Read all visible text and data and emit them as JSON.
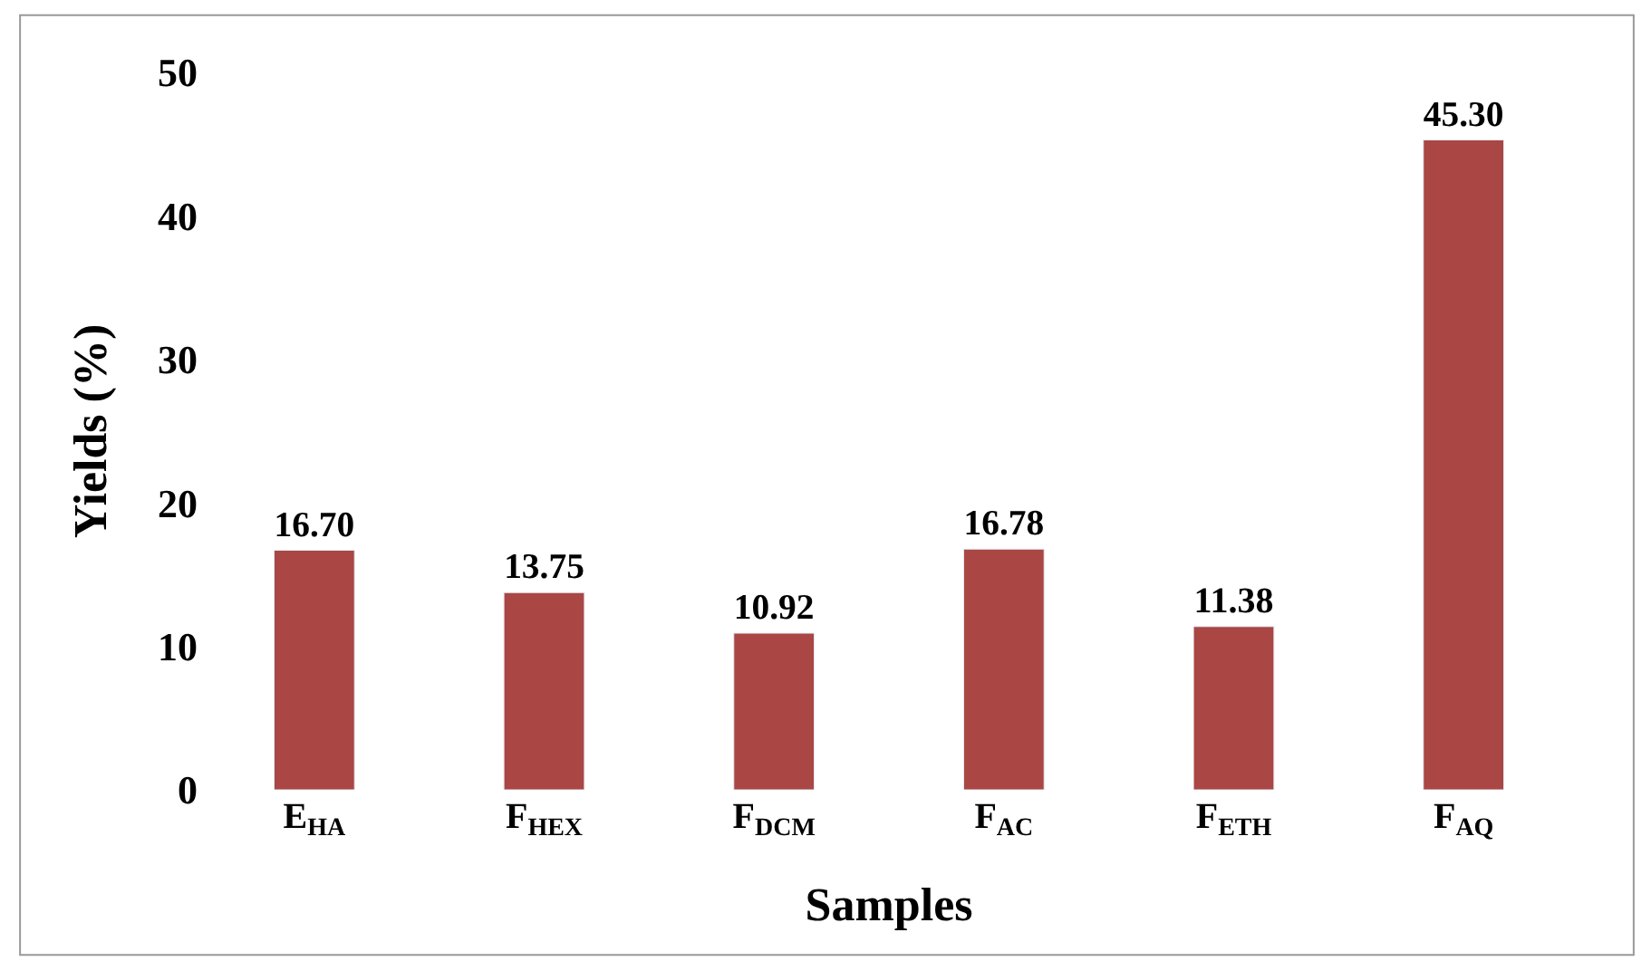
{
  "chart_data": {
    "type": "bar",
    "categories": [
      "E$_{HA}$",
      "F$_{HEX}$",
      "F$_{DCM}$",
      "F$_{AC}$",
      "F$_{ETH}$",
      "F$_{AQ}$"
    ],
    "values": [
      16.7,
      13.75,
      10.92,
      16.78,
      11.38,
      45.3
    ],
    "value_labels": [
      "16.70",
      "13.75",
      "10.92",
      "16.78",
      "11.38",
      "45.30"
    ],
    "color": "#aa4643",
    "xlabel": "Samples",
    "ylabel": "Yields (%)",
    "ylim": [
      0,
      50
    ],
    "yticks": [
      0,
      10,
      20,
      30,
      40,
      50
    ]
  }
}
